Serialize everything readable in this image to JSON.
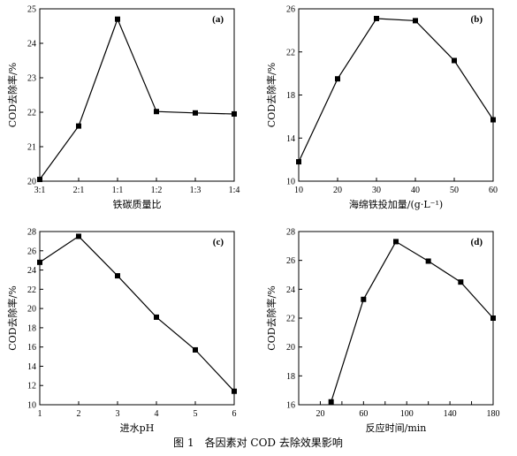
{
  "figure_caption": "图 1　各因素对 COD 去除效果影响",
  "chart_data": [
    {
      "type": "line",
      "panel_tag": "(a)",
      "xlabel": "铁碳质量比",
      "ylabel": "COD去除率/%",
      "categories": [
        "3:1",
        "2:1",
        "1:1",
        "1:2",
        "1:3",
        "1:4"
      ],
      "values": [
        20.05,
        21.6,
        24.7,
        22.02,
        21.98,
        21.95
      ],
      "xlim": [
        0,
        5
      ],
      "ylim": [
        20,
        25
      ],
      "yticks": [
        20,
        21,
        22,
        23,
        24,
        25
      ],
      "grid": false,
      "color": "#000000"
    },
    {
      "type": "line",
      "panel_tag": "(b)",
      "xlabel": "海绵铁投加量/(g·L⁻¹)",
      "ylabel": "COD去除率/%",
      "x": [
        10,
        20,
        30,
        40,
        50,
        60
      ],
      "values": [
        11.8,
        19.5,
        25.1,
        24.9,
        21.2,
        15.7
      ],
      "xlim": [
        10,
        60
      ],
      "xticks": [
        10,
        20,
        30,
        40,
        50,
        60
      ],
      "ylim": [
        10,
        26
      ],
      "yticks": [
        10,
        14,
        18,
        22,
        26
      ],
      "grid": false,
      "color": "#000000"
    },
    {
      "type": "line",
      "panel_tag": "(c)",
      "xlabel": "进水pH",
      "ylabel": "COD去除率/%",
      "x": [
        1,
        2,
        3,
        4,
        5,
        6
      ],
      "values": [
        24.8,
        27.5,
        23.4,
        19.1,
        15.7,
        11.4
      ],
      "xlim": [
        1,
        6
      ],
      "xticks": [
        1,
        2,
        3,
        4,
        5,
        6
      ],
      "ylim": [
        10,
        28
      ],
      "yticks": [
        10,
        12,
        14,
        16,
        18,
        20,
        22,
        24,
        26,
        28
      ],
      "grid": false,
      "color": "#000000"
    },
    {
      "type": "line",
      "panel_tag": "(d)",
      "xlabel": "反应时间/min",
      "ylabel": "COD去除率/%",
      "x": [
        30,
        60,
        90,
        120,
        150,
        180
      ],
      "values": [
        16.2,
        23.3,
        27.3,
        25.95,
        24.5,
        22.0
      ],
      "xlim": [
        0,
        180
      ],
      "xticks": [
        0,
        20,
        40,
        60,
        80,
        100,
        120,
        140,
        160,
        180
      ],
      "xtick_labels": [
        "20",
        "60",
        "100",
        "140",
        "180"
      ],
      "xtick_label_values": [
        20,
        60,
        100,
        140,
        180
      ],
      "ylim": [
        16,
        28
      ],
      "yticks": [
        16,
        18,
        20,
        22,
        24,
        26,
        28
      ],
      "grid": false,
      "color": "#000000"
    }
  ]
}
